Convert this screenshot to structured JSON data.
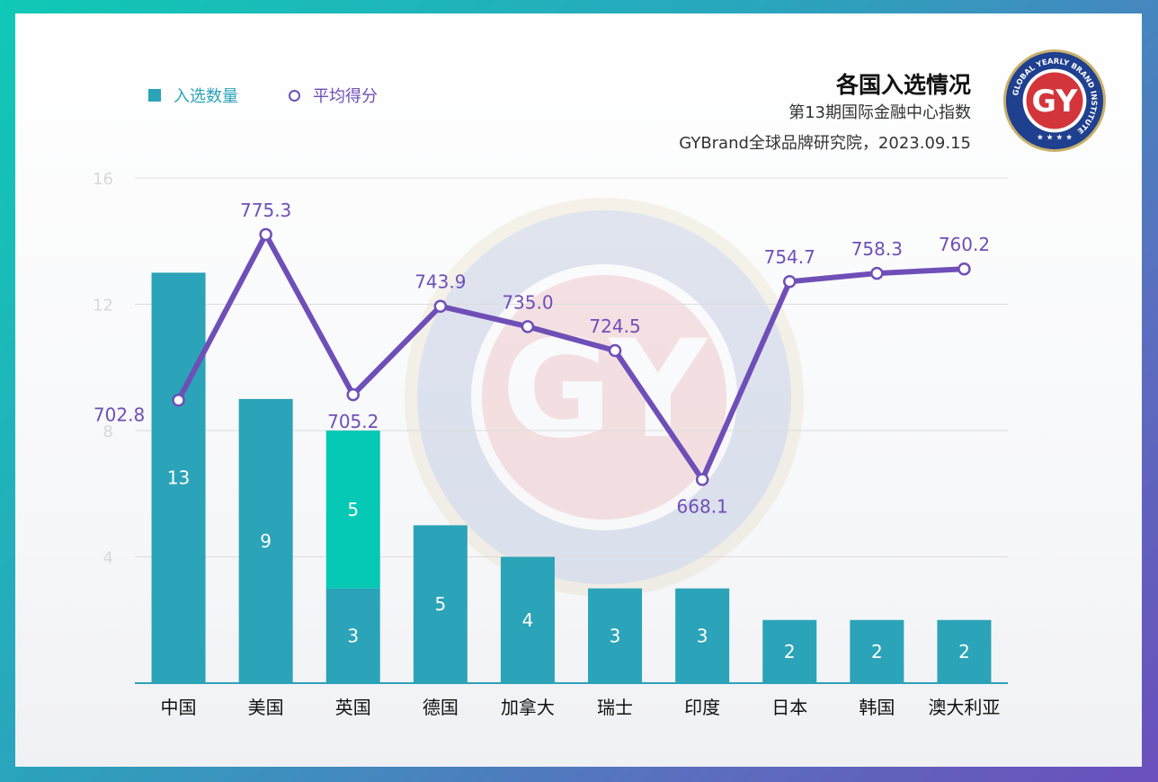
{
  "header": {
    "title": "各国入选情况",
    "subtitle_line1": "第13期国际金融中心指数",
    "subtitle_line2": "GYBrand全球品牌研究院，2023.09.15"
  },
  "legend": {
    "bar_label": "入选数量",
    "line_label": "平均得分"
  },
  "logo": {
    "text": "GY",
    "ring_text": "GLOBAL YEARLY BRAND INSTITUTE"
  },
  "colors": {
    "bar": "#2ba3b8",
    "bar_highlight": "#05c9b5",
    "line": "#6f4fb7",
    "axis": "#2ba3b8"
  },
  "chart_data": {
    "type": "bar",
    "categories": [
      "中国",
      "美国",
      "英国",
      "德国",
      "加拿大",
      "瑞士",
      "印度",
      "日本",
      "韩国",
      "澳大利亚"
    ],
    "series": [
      {
        "name": "入选数量",
        "type": "bar",
        "values": [
          13,
          9,
          3,
          5,
          4,
          3,
          3,
          2,
          2,
          2
        ]
      },
      {
        "type": "bar_stack",
        "values": [
          0,
          0,
          5,
          0,
          0,
          0,
          0,
          0,
          0,
          0
        ]
      },
      {
        "name": "平均得分",
        "type": "line",
        "values": [
          702.8,
          775.3,
          705.2,
          743.9,
          735.0,
          724.5,
          668.1,
          754.7,
          758.3,
          760.2
        ]
      }
    ],
    "y_ticks": [
      "16",
      "12",
      "8",
      "4"
    ],
    "ylim": [
      0,
      16
    ],
    "grid": true
  }
}
